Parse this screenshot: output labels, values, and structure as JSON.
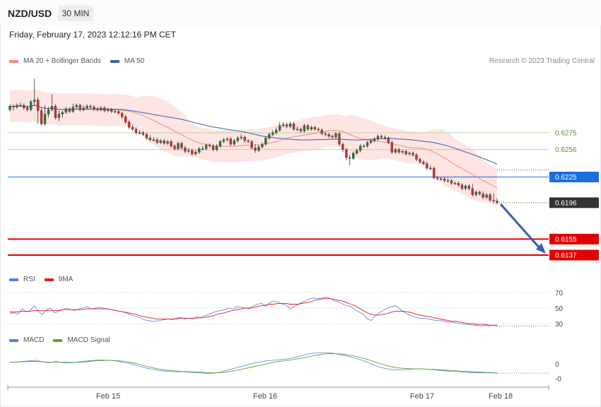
{
  "header": {
    "symbol": "NZD/USD",
    "timeframe": "30 MIN",
    "datetime": "Friday, February 17, 2023 12:12:16 PM CET"
  },
  "legend_main": [
    {
      "label": "MA 20 + Bollinger Bands",
      "color": "#f28b82"
    },
    {
      "label": "MA 50",
      "color": "#3a5fa8"
    }
  ],
  "credit": "Research © 2023 Trading Central",
  "legend_rsi": [
    {
      "label": "RSI",
      "color": "#5b7fd6"
    },
    {
      "label": "9MA",
      "color": "#e31b1b"
    }
  ],
  "legend_macd": [
    {
      "label": "MACD",
      "color": "#5b7fd6"
    },
    {
      "label": "MACD Signal",
      "color": "#5aa832"
    }
  ],
  "colors": {
    "up": "#2e7d32",
    "down": "#d32f2f",
    "band": "#fde0de",
    "ma20": "#f28b82",
    "ma50": "#3a5fa8",
    "level_blue": "#1a6fe0",
    "level_red": "#e10000",
    "level_green": "#b7d7a0",
    "current": "#333333",
    "arrow": "#3a5fa8"
  },
  "chart_data": [
    {
      "type": "candlestick",
      "title": "NZD/USD",
      "timeframe": "30 MIN",
      "x_ticks": [
        "Feb 15",
        "Feb 16",
        "Feb 17",
        "Feb 18"
      ],
      "ylim": [
        0.6125,
        0.6345
      ],
      "series_close": [
        0.6305,
        0.6304,
        0.6306,
        0.6306,
        0.6303,
        0.6301,
        0.631,
        0.6312,
        0.63,
        0.6285,
        0.6296,
        0.6301,
        0.6305,
        0.6292,
        0.6296,
        0.6298,
        0.6302,
        0.6299,
        0.6304,
        0.6306,
        0.6301,
        0.6303,
        0.6305,
        0.6304,
        0.6302,
        0.6301,
        0.6303,
        0.63,
        0.6301,
        0.6299,
        0.6299,
        0.6297,
        0.6293,
        0.6287,
        0.6281,
        0.6279,
        0.6275,
        0.6275,
        0.6273,
        0.6269,
        0.6267,
        0.6267,
        0.6264,
        0.6266,
        0.6263,
        0.6265,
        0.626,
        0.6257,
        0.6263,
        0.6258,
        0.6254,
        0.6255,
        0.6251,
        0.6253,
        0.6257,
        0.6257,
        0.6261,
        0.626,
        0.6256,
        0.626,
        0.6265,
        0.6267,
        0.6268,
        0.6262,
        0.6266,
        0.6269,
        0.627,
        0.6266,
        0.6265,
        0.6258,
        0.6255,
        0.6259,
        0.6262,
        0.6269,
        0.6273,
        0.6275,
        0.6278,
        0.6283,
        0.6284,
        0.6282,
        0.6285,
        0.6279,
        0.6279,
        0.6277,
        0.6283,
        0.6279,
        0.6281,
        0.6279,
        0.6278,
        0.6274,
        0.6273,
        0.6271,
        0.627,
        0.6274,
        0.6262,
        0.6256,
        0.6247,
        0.6246,
        0.6252,
        0.6255,
        0.626,
        0.626,
        0.6264,
        0.6266,
        0.6268,
        0.6271,
        0.627,
        0.6269,
        0.6264,
        0.6253,
        0.6256,
        0.6253,
        0.6254,
        0.6251,
        0.6252,
        0.625,
        0.6245,
        0.6242,
        0.624,
        0.6235,
        0.6235,
        0.6224,
        0.6223,
        0.6223,
        0.6221,
        0.6221,
        0.6218,
        0.6218,
        0.6216,
        0.6212,
        0.6215,
        0.6212,
        0.6205,
        0.6208,
        0.6206,
        0.6202,
        0.6205,
        0.6199,
        0.6198,
        0.6196
      ],
      "series_open": [
        0.6301,
        0.6305,
        0.6304,
        0.6306,
        0.6306,
        0.6303,
        0.6301,
        0.631,
        0.6312,
        0.63,
        0.6285,
        0.6296,
        0.6301,
        0.6305,
        0.6292,
        0.6296,
        0.6298,
        0.6302,
        0.6299,
        0.6304,
        0.6306,
        0.6301,
        0.6303,
        0.6305,
        0.6304,
        0.6302,
        0.6301,
        0.6303,
        0.63,
        0.6301,
        0.6299,
        0.6299,
        0.6297,
        0.6293,
        0.6287,
        0.6281,
        0.6279,
        0.6275,
        0.6275,
        0.6273,
        0.6269,
        0.6267,
        0.6267,
        0.6264,
        0.6266,
        0.6263,
        0.6265,
        0.626,
        0.6257,
        0.6263,
        0.6258,
        0.6254,
        0.6255,
        0.6251,
        0.6253,
        0.6257,
        0.6257,
        0.6261,
        0.626,
        0.6256,
        0.626,
        0.6265,
        0.6267,
        0.6268,
        0.6262,
        0.6266,
        0.6269,
        0.627,
        0.6266,
        0.6265,
        0.6258,
        0.6255,
        0.6259,
        0.6262,
        0.6269,
        0.6273,
        0.6275,
        0.6278,
        0.6283,
        0.6284,
        0.6282,
        0.6285,
        0.6279,
        0.6279,
        0.6277,
        0.6283,
        0.6279,
        0.6281,
        0.6279,
        0.6278,
        0.6274,
        0.6273,
        0.6271,
        0.627,
        0.6274,
        0.6262,
        0.6256,
        0.6247,
        0.6246,
        0.6252,
        0.6255,
        0.626,
        0.626,
        0.6264,
        0.6266,
        0.6268,
        0.6271,
        0.627,
        0.6269,
        0.6264,
        0.6253,
        0.6256,
        0.6253,
        0.6254,
        0.6251,
        0.6252,
        0.625,
        0.6245,
        0.6242,
        0.624,
        0.6235,
        0.6235,
        0.6224,
        0.6223,
        0.6223,
        0.6221,
        0.6221,
        0.6218,
        0.6218,
        0.6216,
        0.6212,
        0.6215,
        0.6212,
        0.6205,
        0.6208,
        0.6206,
        0.6202,
        0.6205,
        0.6199,
        0.6198
      ],
      "series_high": [
        0.6307,
        0.6307,
        0.6308,
        0.6309,
        0.6308,
        0.6306,
        0.6312,
        0.6336,
        0.6315,
        0.6302,
        0.6306,
        0.6304,
        0.6318,
        0.6307,
        0.63,
        0.63,
        0.6304,
        0.6304,
        0.6308,
        0.6308,
        0.6308,
        0.6306,
        0.6307,
        0.6307,
        0.6306,
        0.6304,
        0.6305,
        0.6305,
        0.6303,
        0.6303,
        0.6302,
        0.6301,
        0.6299,
        0.6295,
        0.6289,
        0.6284,
        0.6281,
        0.6278,
        0.6277,
        0.6275,
        0.6272,
        0.627,
        0.6269,
        0.6268,
        0.6268,
        0.6267,
        0.6267,
        0.6262,
        0.6265,
        0.6265,
        0.626,
        0.6258,
        0.6257,
        0.6256,
        0.6259,
        0.626,
        0.6263,
        0.6263,
        0.6262,
        0.6262,
        0.6267,
        0.6269,
        0.627,
        0.627,
        0.6268,
        0.6271,
        0.6273,
        0.6272,
        0.6268,
        0.6267,
        0.6262,
        0.6261,
        0.6264,
        0.6271,
        0.6275,
        0.6278,
        0.6281,
        0.6287,
        0.6287,
        0.6286,
        0.6287,
        0.6287,
        0.6282,
        0.6281,
        0.6285,
        0.6285,
        0.6283,
        0.6283,
        0.6281,
        0.628,
        0.6276,
        0.6275,
        0.6273,
        0.6276,
        0.6276,
        0.6264,
        0.6258,
        0.625,
        0.6254,
        0.6257,
        0.6262,
        0.6262,
        0.6266,
        0.6268,
        0.627,
        0.6273,
        0.6273,
        0.6272,
        0.6271,
        0.6266,
        0.6258,
        0.6258,
        0.6256,
        0.6256,
        0.6254,
        0.6254,
        0.6252,
        0.6247,
        0.6244,
        0.6242,
        0.6238,
        0.6237,
        0.6226,
        0.6225,
        0.6225,
        0.6224,
        0.6223,
        0.622,
        0.622,
        0.6218,
        0.6217,
        0.6217,
        0.6217,
        0.621,
        0.621,
        0.6209,
        0.6207,
        0.6207,
        0.6207,
        0.6201
      ],
      "series_low": [
        0.6299,
        0.63,
        0.6302,
        0.6304,
        0.6301,
        0.6299,
        0.6299,
        0.6306,
        0.6285,
        0.6283,
        0.6283,
        0.6292,
        0.6299,
        0.629,
        0.6288,
        0.6292,
        0.6296,
        0.6297,
        0.6297,
        0.6302,
        0.6299,
        0.6299,
        0.6301,
        0.6302,
        0.63,
        0.6299,
        0.6299,
        0.6298,
        0.6298,
        0.6297,
        0.6297,
        0.6295,
        0.6291,
        0.6285,
        0.6279,
        0.6277,
        0.6273,
        0.6273,
        0.6271,
        0.6267,
        0.6265,
        0.6265,
        0.6262,
        0.6262,
        0.6261,
        0.6261,
        0.6258,
        0.6255,
        0.6255,
        0.6256,
        0.6252,
        0.6252,
        0.6249,
        0.6249,
        0.6251,
        0.6255,
        0.6255,
        0.6258,
        0.6254,
        0.6254,
        0.6258,
        0.6263,
        0.6265,
        0.626,
        0.626,
        0.6264,
        0.6267,
        0.6264,
        0.6263,
        0.6256,
        0.6252,
        0.6253,
        0.6257,
        0.626,
        0.6267,
        0.6271,
        0.6273,
        0.6276,
        0.6281,
        0.628,
        0.628,
        0.6277,
        0.6277,
        0.6275,
        0.6275,
        0.6277,
        0.6277,
        0.6277,
        0.6276,
        0.6272,
        0.6271,
        0.6269,
        0.6268,
        0.6268,
        0.626,
        0.6253,
        0.6244,
        0.6238,
        0.6244,
        0.625,
        0.6253,
        0.6258,
        0.6258,
        0.6262,
        0.6264,
        0.6266,
        0.6268,
        0.6267,
        0.6262,
        0.6251,
        0.6251,
        0.6251,
        0.6251,
        0.6249,
        0.6249,
        0.6248,
        0.6243,
        0.624,
        0.6238,
        0.6233,
        0.6233,
        0.6222,
        0.6221,
        0.6221,
        0.6219,
        0.6219,
        0.6216,
        0.6216,
        0.6214,
        0.621,
        0.621,
        0.621,
        0.6203,
        0.6203,
        0.6204,
        0.62,
        0.62,
        0.6197,
        0.6195,
        0.6194
      ],
      "levels": [
        {
          "value": 0.6275,
          "label": "0.6275",
          "kind": "resistance-green"
        },
        {
          "value": 0.6256,
          "label": "0.6256",
          "kind": "resistance-green"
        },
        {
          "value": 0.6225,
          "label": "0.6225",
          "kind": "pivot-blue"
        },
        {
          "value": 0.6196,
          "label": "0.6196",
          "kind": "current"
        },
        {
          "value": 0.6155,
          "label": "0.6155",
          "kind": "support-red"
        },
        {
          "value": 0.6137,
          "label": "0.6137",
          "kind": "support-red"
        }
      ],
      "forecast_arrow": {
        "from": 0.6196,
        "to": 0.6137
      }
    },
    {
      "type": "line",
      "title": "RSI",
      "ylim": [
        20,
        80
      ],
      "y_ticks": [
        70,
        50,
        30
      ],
      "series": [
        {
          "name": "RSI",
          "values": [
            43,
            44,
            42,
            49,
            45,
            47,
            53,
            46,
            42,
            48,
            50,
            44,
            46,
            48,
            50,
            48,
            47,
            49,
            50,
            52,
            49,
            50,
            51,
            50,
            49,
            48,
            47,
            46,
            45,
            43,
            41,
            39,
            38,
            35,
            34,
            33,
            33,
            34,
            35,
            36,
            35,
            37,
            38,
            36,
            37,
            36,
            39,
            37,
            40,
            42,
            44,
            46,
            47,
            48,
            50,
            49,
            52,
            51,
            50,
            49,
            53,
            55,
            56,
            52,
            57,
            59,
            58,
            55,
            54,
            49,
            52,
            55,
            57,
            60,
            62,
            63,
            62,
            63,
            64,
            62,
            59,
            58,
            55,
            53,
            52,
            48,
            45,
            42,
            36,
            34,
            40,
            44,
            47,
            50,
            52,
            53,
            49,
            45,
            42,
            40,
            38,
            37,
            37,
            36,
            35,
            34,
            34,
            33,
            32,
            32,
            31,
            30,
            29,
            29,
            28,
            28,
            27,
            28,
            27,
            28,
            27
          ]
        },
        {
          "name": "9MA",
          "values": [
            45,
            45,
            45,
            46,
            46,
            46,
            47,
            47,
            47,
            47,
            47,
            47,
            47,
            48,
            48,
            48,
            48,
            48,
            48,
            49,
            49,
            49,
            49,
            49,
            49,
            48,
            47,
            46,
            45,
            44,
            43,
            42,
            40,
            39,
            38,
            37,
            36,
            36,
            36,
            36,
            36,
            36,
            37,
            37,
            37,
            37,
            37,
            38,
            38,
            39,
            40,
            42,
            43,
            44,
            46,
            47,
            48,
            49,
            50,
            50,
            51,
            52,
            53,
            54,
            55,
            55,
            56,
            56,
            56,
            55,
            55,
            55,
            56,
            57,
            58,
            60,
            61,
            62,
            62,
            62,
            61,
            60,
            59,
            57,
            55,
            53,
            50,
            47,
            44,
            42,
            41,
            41,
            42,
            43,
            45,
            46,
            46,
            46,
            45,
            44,
            42,
            41,
            40,
            39,
            38,
            37,
            36,
            35,
            34,
            33,
            33,
            32,
            31,
            30,
            30,
            29,
            29,
            29,
            28,
            28,
            28
          ]
        }
      ]
    },
    {
      "type": "line",
      "title": "MACD",
      "y_ticks": [
        0,
        -0.0005
      ],
      "y_tick_labels": [
        "0",
        "-0"
      ],
      "ylim": [
        -0.0008,
        0.0006
      ],
      "series": [
        {
          "name": "MACD",
          "values": [
            5e-05,
            6e-05,
            8e-05,
            0.0001,
            0.00012,
            6e-05,
            4e-05,
            8e-05,
            4e-05,
            3e-05,
            5e-05,
            8e-05,
            0.0001,
            0.00012,
            0.00013,
            0.00012,
            0.0001,
            6e-05,
            2e-05,
            -4e-05,
            -0.0001,
            -0.00016,
            -0.0002,
            -0.00024,
            -0.00026,
            -0.00027,
            -0.00027,
            -0.00028,
            -0.0003,
            -0.00031,
            -0.00033,
            -0.00032,
            -0.00028,
            -0.00022,
            -0.00016,
            -0.0001,
            -4e-05,
            2e-05,
            6e-05,
            0.0001,
            0.00012,
            0.00014,
            0.00016,
            0.0002,
            0.00026,
            0.00032,
            0.00036,
            0.00038,
            0.00037,
            0.00036,
            0.00032,
            0.00028,
            0.00022,
            0.00016,
            8e-05,
            -2e-05,
            -0.0001,
            -0.00016,
            -0.0002,
            -0.00021,
            -0.0002,
            -0.00018,
            -0.00017,
            -0.00018,
            -0.0002,
            -0.00022,
            -0.00024,
            -0.00026,
            -0.00027,
            -0.00028,
            -0.0003,
            -0.0003,
            -0.00031,
            -0.00031,
            -0.00032
          ]
        },
        {
          "name": "MACD Signal",
          "values": [
            6e-05,
            6e-05,
            7e-05,
            8e-05,
            8e-05,
            7e-05,
            6e-05,
            6e-05,
            6e-05,
            5e-05,
            5e-05,
            6e-05,
            8e-05,
            0.0001,
            0.00011,
            0.00012,
            0.00011,
            9e-05,
            6e-05,
            2e-05,
            -4e-05,
            -0.0001,
            -0.00015,
            -0.00019,
            -0.00022,
            -0.00024,
            -0.00026,
            -0.00027,
            -0.00028,
            -0.00029,
            -0.0003,
            -0.00031,
            -0.0003,
            -0.00028,
            -0.00024,
            -0.0002,
            -0.00015,
            -0.0001,
            -5e-05,
            0.0,
            5e-05,
            8e-05,
            0.00011,
            0.00014,
            0.00018,
            0.00022,
            0.00027,
            0.00031,
            0.00034,
            0.00035,
            0.00034,
            0.00032,
            0.00028,
            0.00023,
            0.00017,
            0.0001,
            2e-05,
            -5e-05,
            -0.0001,
            -0.00014,
            -0.00016,
            -0.00017,
            -0.00017,
            -0.00018,
            -0.00019,
            -0.0002,
            -0.00021,
            -0.00023,
            -0.00024,
            -0.00026,
            -0.00027,
            -0.00028,
            -0.00029,
            -0.0003,
            -0.00031
          ]
        }
      ]
    }
  ]
}
